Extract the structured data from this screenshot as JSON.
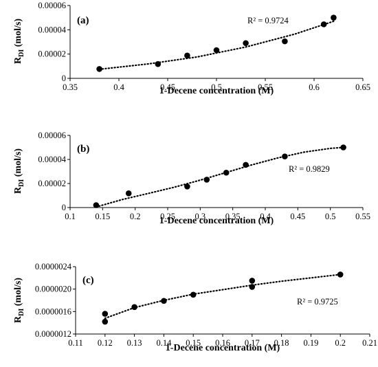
{
  "chart_data": [
    {
      "type": "scatter",
      "panel_label": "(a)",
      "xlabel": "1-Decene concentration (M)",
      "ylabel_main": "R",
      "ylabel_sub": "DI",
      "ylabel_unit": " (mol/s)",
      "annotation": "R² = 0.9724",
      "xlim": [
        0.35,
        0.65
      ],
      "ylim": [
        0,
        6e-05
      ],
      "x_ticks": [
        0.35,
        0.4,
        0.45,
        0.5,
        0.55,
        0.6,
        0.65
      ],
      "x_tick_labels": [
        "0.35",
        "0.4",
        "0.45",
        "0.5",
        "0.55",
        "0.6",
        "0.65"
      ],
      "y_ticks": [
        0,
        2e-05,
        4e-05,
        6e-05
      ],
      "y_tick_labels": [
        "0",
        "0.00002",
        "0.00004",
        "0.00006"
      ],
      "grid": false,
      "trendline": "dotted polynomial fit",
      "points": [
        {
          "x": 0.38,
          "y": 7.7e-06
        },
        {
          "x": 0.44,
          "y": 1.18e-05
        },
        {
          "x": 0.47,
          "y": 1.88e-05
        },
        {
          "x": 0.5,
          "y": 2.32e-05
        },
        {
          "x": 0.53,
          "y": 2.9e-05
        },
        {
          "x": 0.57,
          "y": 3.05e-05
        },
        {
          "x": 0.61,
          "y": 4.45e-05
        },
        {
          "x": 0.62,
          "y": 5e-05
        }
      ],
      "fit": [
        {
          "x": 0.38,
          "y": 7.5e-06
        },
        {
          "x": 0.43,
          "y": 1.19e-05
        },
        {
          "x": 0.48,
          "y": 1.76e-05
        },
        {
          "x": 0.53,
          "y": 2.58e-05
        },
        {
          "x": 0.58,
          "y": 3.64e-05
        },
        {
          "x": 0.62,
          "y": 4.7e-05
        }
      ]
    },
    {
      "type": "scatter",
      "panel_label": "(b)",
      "xlabel": "1-Decene concentration (M)",
      "ylabel_main": "R",
      "ylabel_sub": "DI",
      "ylabel_unit": " (mol/s)",
      "annotation": "R² = 0.9829",
      "xlim": [
        0.1,
        0.55
      ],
      "ylim": [
        0,
        6e-05
      ],
      "x_ticks": [
        0.1,
        0.15,
        0.2,
        0.25,
        0.3,
        0.35,
        0.4,
        0.45,
        0.5,
        0.55
      ],
      "x_tick_labels": [
        "0.1",
        "0.15",
        "0.2",
        "0.25",
        "0.3",
        "0.35",
        "0.4",
        "0.45",
        "0.5",
        "0.55"
      ],
      "y_ticks": [
        0,
        2e-05,
        4e-05,
        6e-05
      ],
      "y_tick_labels": [
        "0",
        "0.00002",
        "0.00004",
        "0.00006"
      ],
      "grid": false,
      "trendline": "dotted polynomial fit",
      "points": [
        {
          "x": 0.14,
          "y": 2e-06
        },
        {
          "x": 0.19,
          "y": 1.18e-05
        },
        {
          "x": 0.28,
          "y": 1.75e-05
        },
        {
          "x": 0.31,
          "y": 2.32e-05
        },
        {
          "x": 0.34,
          "y": 2.9e-05
        },
        {
          "x": 0.37,
          "y": 3.55e-05
        },
        {
          "x": 0.43,
          "y": 4.25e-05
        },
        {
          "x": 0.52,
          "y": 5e-05
        }
      ],
      "fit": [
        {
          "x": 0.14,
          "y": 5e-07
        },
        {
          "x": 0.18,
          "y": 6.6e-06
        },
        {
          "x": 0.22,
          "y": 1.17e-05
        },
        {
          "x": 0.26,
          "y": 1.69e-05
        },
        {
          "x": 0.3,
          "y": 2.28e-05
        },
        {
          "x": 0.34,
          "y": 2.92e-05
        },
        {
          "x": 0.38,
          "y": 3.56e-05
        },
        {
          "x": 0.42,
          "y": 4.14e-05
        },
        {
          "x": 0.46,
          "y": 4.61e-05
        },
        {
          "x": 0.5,
          "y": 4.92e-05
        },
        {
          "x": 0.52,
          "y": 5e-05
        }
      ]
    },
    {
      "type": "scatter",
      "panel_label": "(c)",
      "xlabel": "1-Decene concentration (M)",
      "ylabel_main": "R",
      "ylabel_sub": "DI",
      "ylabel_unit": " (mol/s)",
      "annotation": "R² = 0.9725",
      "xlim": [
        0.11,
        0.21
      ],
      "ylim": [
        1.2e-06,
        2.4e-06
      ],
      "x_ticks": [
        0.11,
        0.12,
        0.13,
        0.14,
        0.15,
        0.16,
        0.17,
        0.18,
        0.19,
        0.2,
        0.21
      ],
      "x_tick_labels": [
        "0.11",
        "0.12",
        "0.13",
        "0.14",
        "0.15",
        "0.16",
        "0.17",
        "0.18",
        "0.19",
        "0.2",
        "0.21"
      ],
      "y_ticks": [
        1.2e-06,
        1.6e-06,
        2e-06,
        2.4e-06
      ],
      "y_tick_labels": [
        "0.0000012",
        "0.0000016",
        "0.0000020",
        "0.0000024"
      ],
      "grid": false,
      "trendline": "dotted logarithmic fit",
      "points": [
        {
          "x": 0.12,
          "y": 1.56e-06
        },
        {
          "x": 0.12,
          "y": 1.42e-06
        },
        {
          "x": 0.13,
          "y": 1.68e-06
        },
        {
          "x": 0.14,
          "y": 1.79e-06
        },
        {
          "x": 0.15,
          "y": 1.9e-06
        },
        {
          "x": 0.17,
          "y": 2.15e-06
        },
        {
          "x": 0.17,
          "y": 2.04e-06
        },
        {
          "x": 0.2,
          "y": 2.26e-06
        }
      ],
      "fit": [
        {
          "x": 0.12,
          "y": 1.48e-06
        },
        {
          "x": 0.13,
          "y": 1.67e-06
        },
        {
          "x": 0.14,
          "y": 1.8e-06
        },
        {
          "x": 0.15,
          "y": 1.91e-06
        },
        {
          "x": 0.16,
          "y": 1.99e-06
        },
        {
          "x": 0.17,
          "y": 2.07e-06
        },
        {
          "x": 0.18,
          "y": 2.14e-06
        },
        {
          "x": 0.19,
          "y": 2.2e-06
        },
        {
          "x": 0.2,
          "y": 2.26e-06
        }
      ]
    }
  ]
}
